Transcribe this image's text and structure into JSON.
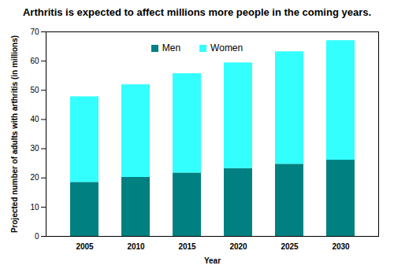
{
  "chart_data": {
    "type": "bar",
    "stacked": true,
    "title": "Arthritis is expected to affect millions more people in the coming years.",
    "x_label": "Year",
    "y_label": "Projected number of adults with arthritis (in millions)",
    "categories": [
      "2005",
      "2010",
      "2015",
      "2020",
      "2025",
      "2030"
    ],
    "series": [
      {
        "name": "Men",
        "color": "#008080",
        "values": [
          18.5,
          20.2,
          21.7,
          23.2,
          24.7,
          26.1
        ]
      },
      {
        "name": "Women",
        "color": "#33ffff",
        "values": [
          29.3,
          31.7,
          34.0,
          36.2,
          38.5,
          40.9
        ]
      }
    ],
    "ylim": [
      0,
      70
    ],
    "yticks": [
      0,
      10,
      20,
      30,
      40,
      50,
      60,
      70
    ],
    "grid": false,
    "legend": "top"
  }
}
